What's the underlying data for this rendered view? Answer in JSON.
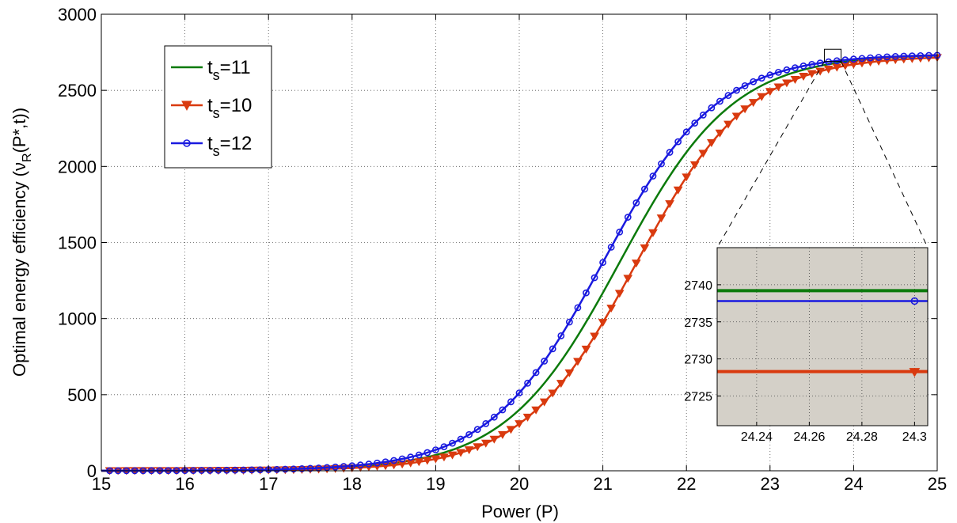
{
  "chart_data": {
    "type": "line",
    "xlabel": "Power (P)",
    "ylabel": "Optimal energy efficiency (ν",
    "ylabel_sub": "R",
    "ylabel_tail": "(P*,t))",
    "xlim": [
      15,
      25
    ],
    "ylim": [
      0,
      3000
    ],
    "xticks": [
      "15",
      "16",
      "17",
      "18",
      "19",
      "20",
      "21",
      "22",
      "23",
      "24",
      "25"
    ],
    "yticks": [
      "0",
      "500",
      "1000",
      "1500",
      "2000",
      "2500",
      "3000"
    ],
    "grid": true,
    "legend_position": "top-left",
    "series": [
      {
        "name": "t",
        "sub": "s",
        "suffix": "=11",
        "color": "#0b7a0b",
        "marker": "none",
        "midpoint": 21.2,
        "scale": 0.68,
        "max": 2739
      },
      {
        "name": "t",
        "sub": "s",
        "suffix": "=10",
        "color": "#d93a0f",
        "marker": "triangle-down",
        "midpoint": 21.4,
        "scale": 0.68,
        "max": 2728.5
      },
      {
        "name": "t",
        "sub": "s",
        "suffix": "=12",
        "color": "#1a1adf",
        "marker": "circle",
        "midpoint": 21.0,
        "scale": 0.68,
        "max": 2738
      }
    ],
    "inset": {
      "xlim": [
        24.225,
        24.305
      ],
      "ylim": [
        2721,
        2745
      ],
      "xticks": [
        "24.24",
        "24.26",
        "24.28",
        "24.3"
      ],
      "yticks": [
        "2725",
        "2730",
        "2735",
        "2740"
      ],
      "background": "#d4d0c8",
      "zoom_box_x": [
        23.65,
        23.85
      ],
      "zoom_box_y": [
        2690,
        2770
      ],
      "values": {
        "t_s=11": 2739.2,
        "t_s=12": 2737.8,
        "t_s=10": 2728.3
      }
    }
  }
}
